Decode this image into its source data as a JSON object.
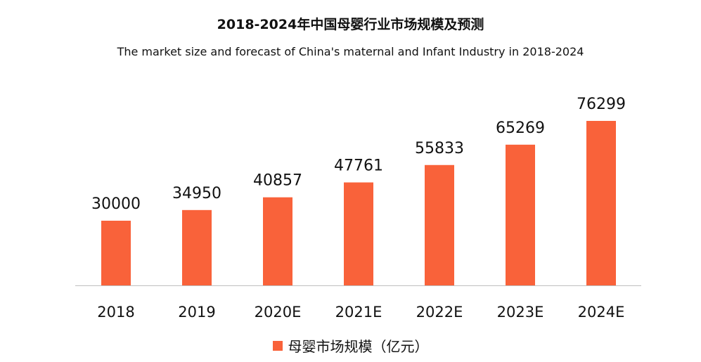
{
  "colors": {
    "bar": "#f9623a",
    "axis": "#bfbfbf",
    "text": "#111111"
  },
  "chart_data": {
    "type": "bar",
    "title": "2018-2024年中国母婴行业市场规模及预测",
    "subtitle": "The market size and forecast of China's maternal and Infant Industry in 2018-2024",
    "xlabel": "",
    "ylabel": "",
    "categories": [
      "2018",
      "2019",
      "2020E",
      "2021E",
      "2022E",
      "2023E",
      "2024E"
    ],
    "series": [
      {
        "name": "母婴市场规模（亿元）",
        "values": [
          30000,
          34950,
          40857,
          47761,
          55833,
          65269,
          76299
        ]
      }
    ],
    "data_labels": [
      "30000",
      "34950",
      "40857",
      "47761",
      "55833",
      "65269",
      "76299"
    ],
    "ylim": [
      0,
      77500
    ],
    "grid": false,
    "legend_position": "bottom"
  }
}
